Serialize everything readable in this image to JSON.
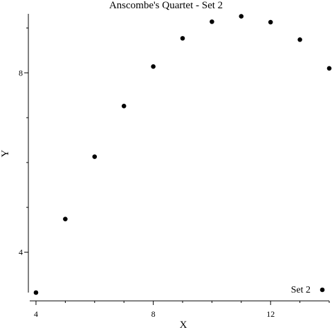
{
  "chart_data": {
    "type": "scatter",
    "title": "Anscombe's Quartet - Set 2",
    "xlabel": "X",
    "ylabel": "Y",
    "xlim": [
      4,
      14
    ],
    "ylim": [
      3.1,
      9.3
    ],
    "xticks": [
      4,
      8,
      12
    ],
    "yticks": [
      4,
      8
    ],
    "grid": false,
    "legend": {
      "position": "bottom-right",
      "entries": [
        "Set 2"
      ]
    },
    "series": [
      {
        "name": "Set 2",
        "color": "#000000",
        "x": [
          4,
          5,
          6,
          7,
          8,
          9,
          10,
          11,
          12,
          13,
          14
        ],
        "y": [
          3.1,
          4.74,
          6.13,
          7.26,
          8.14,
          8.77,
          9.14,
          9.26,
          9.13,
          8.74,
          8.1
        ]
      }
    ]
  }
}
